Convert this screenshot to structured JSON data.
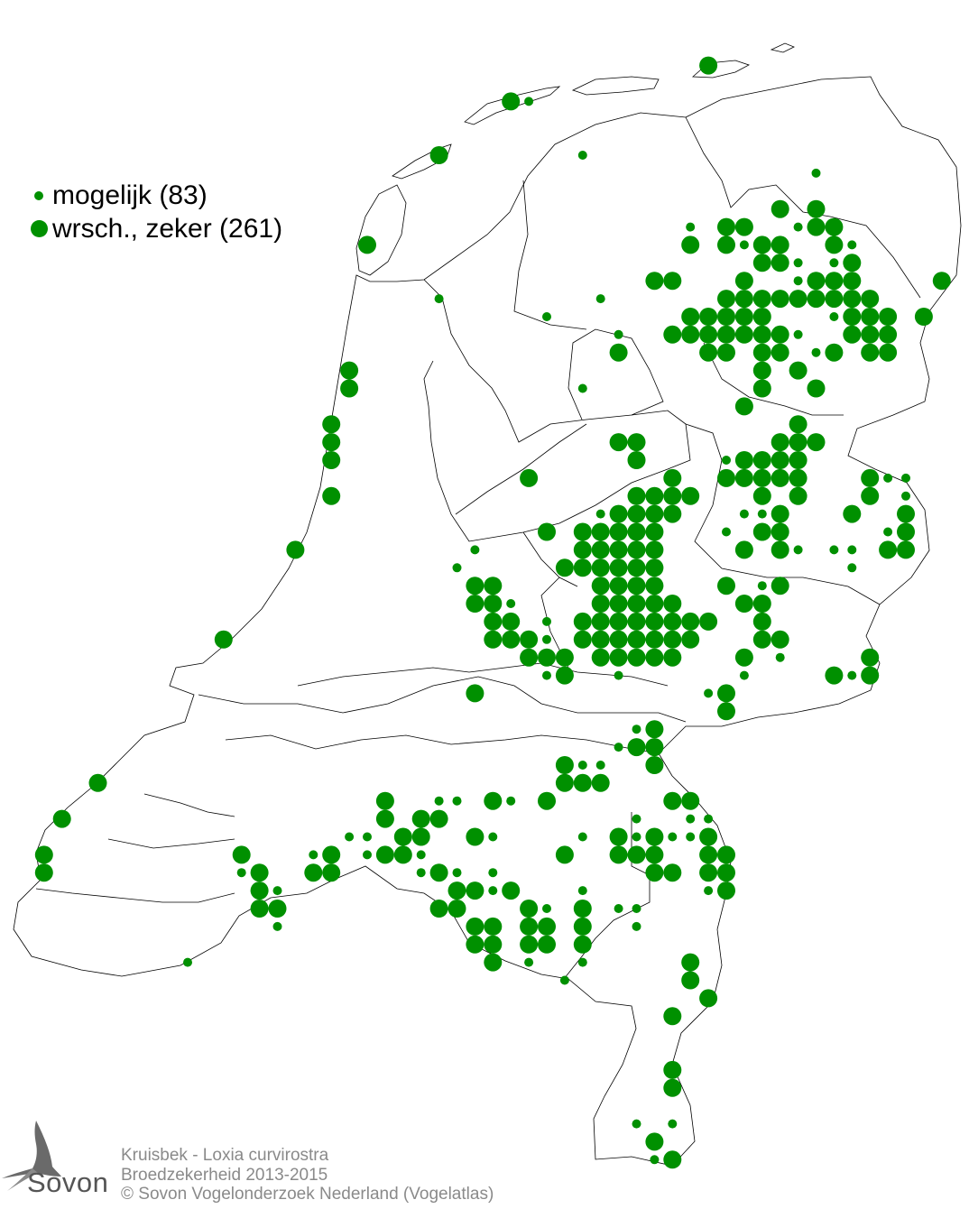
{
  "legend": {
    "items": [
      {
        "label": "mogelijk (83)",
        "category": "mogelijk",
        "count": 83,
        "symbol": "small-dot"
      },
      {
        "label": "wrsch., zeker (261)",
        "category": "waarschijnlijk, zeker",
        "count": 261,
        "symbol": "large-dot"
      }
    ]
  },
  "colors": {
    "dot": "#009000",
    "border": "#000000",
    "water": "#ffffff"
  },
  "footer": {
    "species": "Kruisbek - Loxia curvirostra",
    "subtitle": "Broedzekerheid 2013-2015",
    "copyright": "© Sovon Vogelonderzoek Nederland (Vogelatlas)"
  },
  "logo": {
    "text": "Sovon",
    "icon": "swallow-icon"
  }
}
